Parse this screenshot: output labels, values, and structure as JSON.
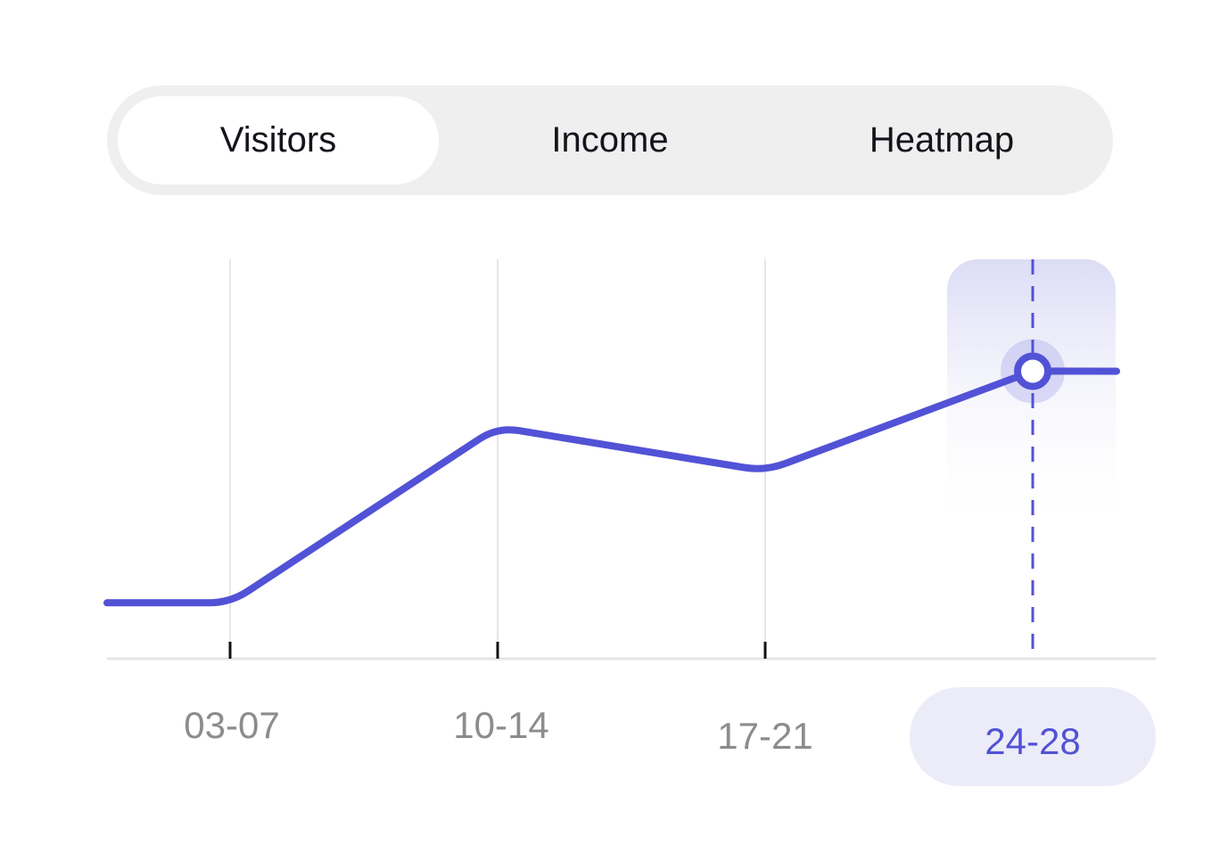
{
  "tabs": [
    {
      "label": "Visitors",
      "active": true
    },
    {
      "label": "Income",
      "active": false
    },
    {
      "label": "Heatmap",
      "active": false
    }
  ],
  "colors": {
    "accent": "#5252d6",
    "highlight_fill": "#ececf9",
    "segmented_bg": "#efefef",
    "grid": "#e6e6e6",
    "label": "#8c8c8c"
  },
  "chart_data": {
    "type": "line",
    "title": "",
    "xlabel": "",
    "ylabel": "",
    "categories": [
      "03-07",
      "10-14",
      "17-21",
      "24-28"
    ],
    "values": [
      14,
      58,
      47,
      72
    ],
    "ylim": [
      0,
      100
    ],
    "selected_category": "24-28",
    "grid": "vertical",
    "y_tick_labels_shown": false
  }
}
